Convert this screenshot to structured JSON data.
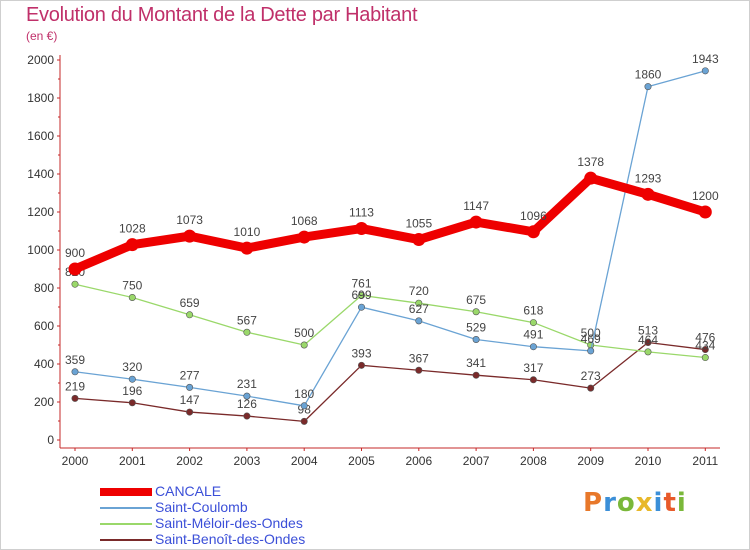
{
  "title": "Evolution du Montant de la Dette par Habitant",
  "subtitle": "(en €)",
  "logo_text": "Proxiti",
  "chart_data": {
    "type": "line",
    "x": [
      "2000",
      "2001",
      "2002",
      "2003",
      "2004",
      "2005",
      "2006",
      "2007",
      "2008",
      "2009",
      "2010",
      "2011"
    ],
    "ylim": [
      0,
      2000
    ],
    "yticks": [
      0,
      200,
      400,
      600,
      800,
      1000,
      1200,
      1400,
      1600,
      1800,
      2000
    ],
    "grid": false,
    "legend_placement": "bottom-left",
    "series": [
      {
        "name": "CANCALE",
        "color": "#ee0000",
        "values": [
          900,
          1028,
          1073,
          1010,
          1068,
          1113,
          1055,
          1147,
          1096,
          1378,
          1293,
          1200
        ]
      },
      {
        "name": "Saint-Coulomb",
        "color": "#6aa3d4",
        "values": [
          359,
          320,
          277,
          231,
          180,
          699,
          627,
          529,
          491,
          469,
          1860,
          1943
        ]
      },
      {
        "name": "Saint-Méloir-des-Ondes",
        "color": "#9ad86a",
        "values": [
          820,
          750,
          659,
          567,
          500,
          761,
          720,
          675,
          618,
          500,
          464,
          434
        ]
      },
      {
        "name": "Saint-Benoît-des-Ondes",
        "color": "#7a2a2a",
        "values": [
          219,
          196,
          147,
          126,
          98,
          393,
          367,
          341,
          317,
          273,
          513,
          476
        ]
      }
    ]
  }
}
